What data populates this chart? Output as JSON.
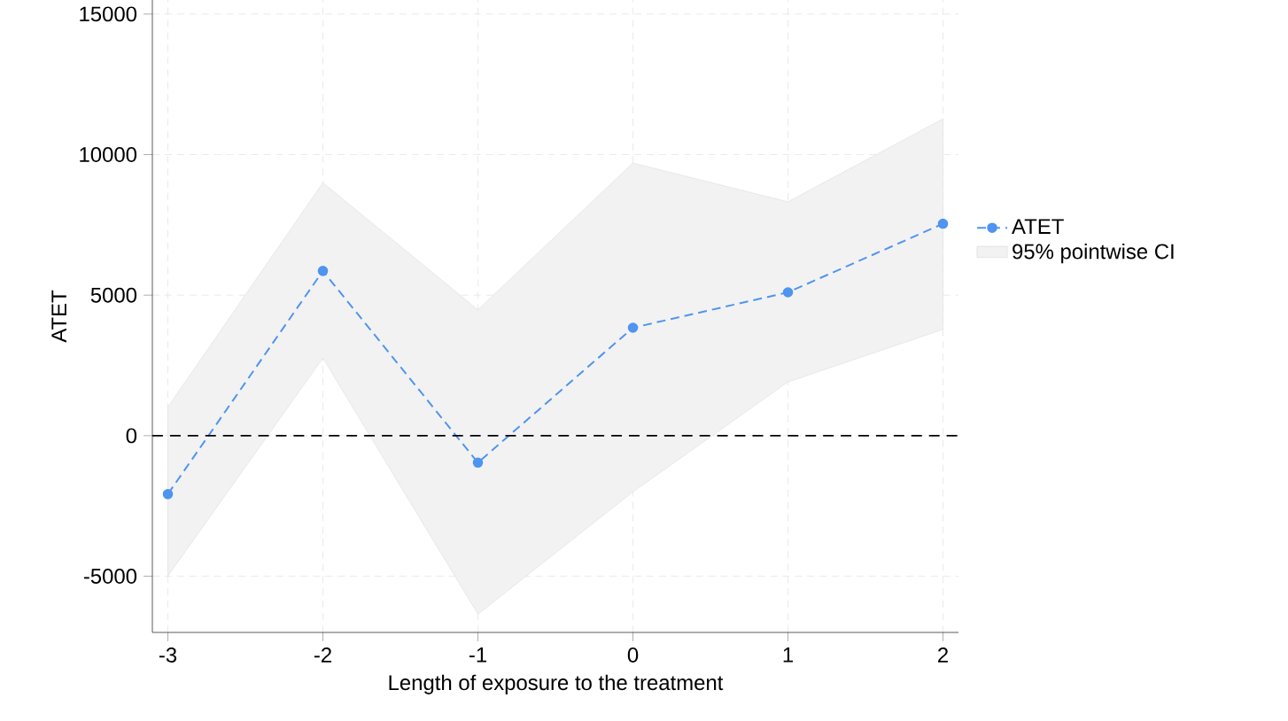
{
  "chart_data": {
    "type": "line",
    "xlabel": "Length of exposure to the treatment",
    "ylabel": "ATET",
    "x": [
      -3,
      -2,
      -1,
      0,
      1,
      2
    ],
    "series": [
      {
        "name": "ATET",
        "color": "#4f94f0",
        "values": [
          -2080,
          5860,
          -960,
          3840,
          5100,
          7540
        ],
        "lower": [
          -4990,
          2760,
          -6350,
          -2000,
          1910,
          3780
        ],
        "upper": [
          1020,
          9000,
          4480,
          9700,
          8320,
          11270
        ]
      }
    ],
    "annotations": [
      "95% pointwise CI"
    ],
    "xlim": [
      -3.1,
      2.1
    ],
    "xticks": [
      -3,
      -2,
      -1,
      0,
      1,
      2
    ],
    "ylim": [
      -7000,
      15500
    ],
    "yticks": [
      -5000,
      0,
      5000,
      10000,
      15000
    ],
    "ref_lines": [
      {
        "axis": "y",
        "value": 0,
        "color": "#000000",
        "line_style": "dashed"
      }
    ],
    "grid": true,
    "legend": "right",
    "marker": "circle",
    "line_style": "dashed"
  }
}
